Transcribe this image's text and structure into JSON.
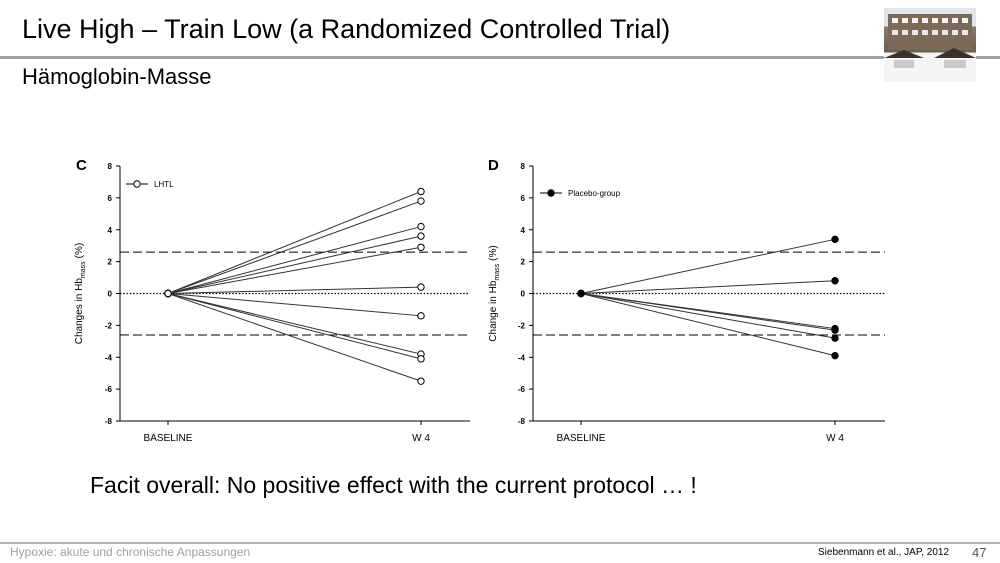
{
  "slide": {
    "title": "Live High – Train Low (a Randomized Controlled Trial)",
    "subtitle": "Hämoglobin-Masse",
    "caption": "Facit overall: No positive effect with the current protocol … !",
    "footer_left": "Hypoxie: akute und chronische Anpassungen",
    "footer_reference": "Siebenmann et al., JAP, 2012",
    "page_number": "47"
  },
  "chart_data": [
    {
      "type": "line",
      "panel_label": "C",
      "legend": "LHTL",
      "legend_marker": "open-circle",
      "ylabel_main": "Changes in Hb",
      "ylabel_sub": "mass",
      "ylabel_unit": "(%)",
      "categories": [
        "BASELINE",
        "W 4"
      ],
      "ylim": [
        -8,
        8
      ],
      "yticks": [
        "8",
        "6",
        "4",
        "2",
        "0",
        "-2",
        "-4",
        "-6",
        "-8"
      ],
      "reference_dashed": [
        2.6,
        -2.6
      ],
      "reference_dotted": 0,
      "series": [
        {
          "values": [
            0,
            6.4
          ]
        },
        {
          "values": [
            0,
            5.8
          ]
        },
        {
          "values": [
            0,
            4.2
          ]
        },
        {
          "values": [
            0,
            3.6
          ]
        },
        {
          "values": [
            0,
            2.9
          ]
        },
        {
          "values": [
            0,
            0.4
          ]
        },
        {
          "values": [
            0,
            -1.4
          ]
        },
        {
          "values": [
            0,
            -3.8
          ]
        },
        {
          "values": [
            0,
            -4.1
          ]
        },
        {
          "values": [
            0,
            -5.5
          ]
        }
      ]
    },
    {
      "type": "line",
      "panel_label": "D",
      "legend": "Placebo-group",
      "legend_marker": "filled-circle",
      "ylabel_main": "Change in Hb",
      "ylabel_sub": "mass",
      "ylabel_unit": "(%)",
      "categories": [
        "BASELINE",
        "W 4"
      ],
      "ylim": [
        -8,
        8
      ],
      "yticks": [
        "8",
        "6",
        "4",
        "2",
        "0",
        "-2",
        "-4",
        "-6",
        "-8"
      ],
      "reference_dashed": [
        2.6,
        -2.6
      ],
      "reference_dotted": 0,
      "series": [
        {
          "values": [
            0,
            3.4
          ]
        },
        {
          "values": [
            0,
            0.8
          ]
        },
        {
          "values": [
            0,
            -2.2
          ]
        },
        {
          "values": [
            0,
            -2.3
          ]
        },
        {
          "values": [
            0,
            -2.8
          ]
        },
        {
          "values": [
            0,
            -3.9
          ]
        }
      ]
    }
  ]
}
